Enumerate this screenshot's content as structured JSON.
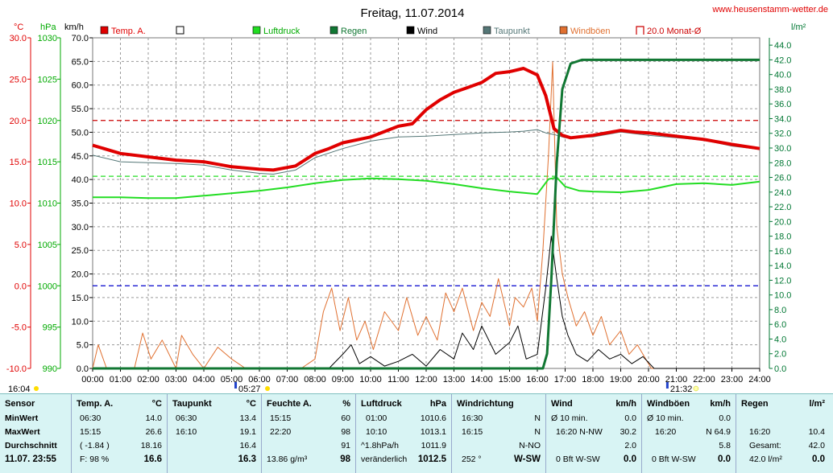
{
  "header": {
    "title": "Freitag, 11.07.2014",
    "site": "www.heusenstamm-wetter.de",
    "unit_temp": "°C",
    "unit_hpa": "hPa",
    "unit_kmh": "km/h",
    "unit_rain": "l/m²"
  },
  "legend": [
    {
      "label": "Temp. A.",
      "color": "#e00000"
    },
    {
      "label": "",
      "color": "#ffffff"
    },
    {
      "label": "Luftdruck",
      "color": "#22dd22"
    },
    {
      "label": "Regen",
      "color": "#117733"
    },
    {
      "label": "Wind",
      "color": "#000000"
    },
    {
      "label": "Taupunkt",
      "color": "#557777"
    },
    {
      "label": "Windböen",
      "color": "#e07030"
    },
    {
      "label": "20.0 Monat-Ø",
      "color": "#cc0000"
    }
  ],
  "axes": {
    "temp_ticks": [
      "30.0",
      "25.0",
      "20.0",
      "15.0",
      "10.0",
      "5.0",
      "0.0",
      "-5.0",
      "-10.0"
    ],
    "hpa_ticks": [
      "1030",
      "1025",
      "1020",
      "1015",
      "1010",
      "1005",
      "1000",
      "995",
      "990"
    ],
    "kmh_ticks": [
      "70.0",
      "65.0",
      "60.0",
      "55.0",
      "50.0",
      "45.0",
      "40.0",
      "35.0",
      "30.0",
      "25.0",
      "20.0",
      "15.0",
      "10.0",
      "5.0",
      "0.0"
    ],
    "rain_ticks": [
      "44.0",
      "42.0",
      "40.0",
      "38.0",
      "36.0",
      "34.0",
      "32.0",
      "30.0",
      "28.0",
      "26.0",
      "24.0",
      "22.0",
      "20.0",
      "18.0",
      "16.0",
      "14.0",
      "12.0",
      "10.0",
      "8.0",
      "6.0",
      "4.0",
      "2.0",
      "0.0"
    ],
    "time_ticks": [
      "00:00",
      "01:00",
      "02:00",
      "03:00",
      "04:00",
      "05:00",
      "06:00",
      "07:00",
      "08:00",
      "09:00",
      "10:00",
      "11:00",
      "12:00",
      "13:00",
      "14:00",
      "15:00",
      "16:00",
      "17:00",
      "18:00",
      "19:00",
      "20:00",
      "21:00",
      "22:00",
      "23:00",
      "24:00"
    ],
    "markers": {
      "left": "16:04",
      "sunrise": "05:27",
      "sunset": "21:32"
    }
  },
  "chart_data": {
    "type": "line",
    "title": "Freitag, 11.07.2014",
    "x_unit": "hours",
    "xlim": [
      0,
      24
    ],
    "temp_range": [
      -10,
      30
    ],
    "hpa_range": [
      990,
      1030
    ],
    "kmh_range": [
      0,
      70
    ],
    "rain_range": [
      0,
      45
    ],
    "reference_lines": [
      {
        "name": "20.0 Monat-Ø",
        "value": 20.0,
        "axis": "temp",
        "color": "#cc0000"
      },
      {
        "name": "Luftdruck ref",
        "value": 1013.25,
        "axis": "hpa",
        "color": "#22dd22"
      },
      {
        "name": "Temp ref",
        "value": 0.0,
        "axis": "temp",
        "color": "#0000cc"
      }
    ],
    "series": [
      {
        "name": "Temp. A.",
        "axis": "temp",
        "color": "#e00000",
        "width": 4,
        "x": [
          0,
          1,
          2,
          3,
          4,
          5,
          6,
          6.5,
          7.3,
          8,
          8.5,
          9,
          10,
          11,
          11.5,
          12,
          12.5,
          13,
          13.5,
          14,
          14.5,
          15,
          15.5,
          16,
          16.3,
          16.6,
          16.9,
          17.2,
          18,
          19,
          19.5,
          20,
          21,
          22,
          23,
          24
        ],
        "y": [
          17.0,
          16.0,
          15.6,
          15.2,
          15.0,
          14.4,
          14.1,
          14.0,
          14.5,
          16.0,
          16.6,
          17.3,
          18.0,
          19.3,
          19.6,
          21.3,
          22.5,
          23.4,
          24.0,
          24.6,
          25.7,
          25.9,
          26.3,
          25.5,
          23.0,
          19.0,
          18.2,
          17.9,
          18.2,
          18.8,
          18.6,
          18.5,
          18.1,
          17.7,
          17.1,
          16.6
        ]
      },
      {
        "name": "Taupunkt",
        "axis": "temp",
        "color": "#557777",
        "width": 1,
        "x": [
          0,
          1,
          2,
          3,
          4,
          5,
          6,
          6.5,
          7.3,
          8,
          9,
          10,
          11,
          12,
          13,
          14,
          15,
          15.5,
          16,
          16.3,
          16.6,
          17,
          18,
          19,
          20,
          21,
          22,
          23,
          24
        ],
        "y": [
          15.8,
          15.0,
          14.9,
          14.8,
          14.6,
          14.0,
          13.6,
          13.5,
          14.0,
          15.5,
          16.6,
          17.5,
          18.0,
          18.1,
          18.3,
          18.5,
          18.6,
          18.7,
          18.9,
          18.5,
          18.3,
          17.9,
          18.0,
          18.6,
          18.2,
          17.9,
          17.6,
          16.9,
          16.5
        ]
      },
      {
        "name": "Luftdruck",
        "axis": "hpa",
        "color": "#22dd22",
        "width": 2,
        "x": [
          0,
          1,
          2,
          3,
          4,
          5,
          6,
          7,
          8,
          9,
          10,
          11,
          12,
          13,
          14,
          15,
          16,
          16.4,
          16.7,
          17,
          17.5,
          18,
          19,
          20,
          21,
          22,
          23,
          24
        ],
        "y": [
          1010.7,
          1010.7,
          1010.6,
          1010.6,
          1010.9,
          1011.2,
          1011.5,
          1011.9,
          1012.4,
          1012.8,
          1013.0,
          1012.9,
          1012.7,
          1012.3,
          1011.8,
          1011.4,
          1011.1,
          1012.9,
          1013.1,
          1012.0,
          1011.5,
          1011.4,
          1011.3,
          1011.6,
          1012.3,
          1012.4,
          1012.2,
          1012.6
        ]
      },
      {
        "name": "Regen",
        "axis": "rain",
        "color": "#117733",
        "width": 3,
        "x": [
          0,
          16.2,
          16.35,
          16.5,
          16.7,
          16.9,
          17.2,
          17.6,
          24
        ],
        "y": [
          0.0,
          0.0,
          2.0,
          12.0,
          28.0,
          38.0,
          41.5,
          42.0,
          42.0
        ]
      },
      {
        "name": "Wind",
        "axis": "kmh",
        "color": "#000000",
        "width": 1,
        "x": [
          0,
          8.5,
          9,
          9.3,
          9.6,
          10,
          10.5,
          11,
          11.5,
          12,
          12.5,
          13,
          13.3,
          13.7,
          14,
          14.5,
          15,
          15.3,
          15.6,
          16,
          16.3,
          16.5,
          16.7,
          16.9,
          17.1,
          17.4,
          17.8,
          18.2,
          18.6,
          19,
          19.4,
          19.8,
          20.2,
          24
        ],
        "y": [
          0,
          0,
          3.0,
          5.0,
          1.0,
          2.5,
          0.5,
          1.5,
          3.0,
          0.5,
          4.0,
          2.0,
          7.5,
          4.0,
          9.0,
          3.0,
          5.5,
          9.0,
          2.0,
          3.0,
          17.0,
          28.0,
          19.0,
          11.0,
          7.0,
          3.0,
          1.5,
          4.0,
          2.0,
          3.0,
          1.0,
          2.5,
          0.0,
          0.0
        ]
      },
      {
        "name": "Windböen",
        "axis": "kmh",
        "color": "#e07030",
        "width": 1,
        "x": [
          0,
          0.2,
          0.5,
          1,
          1.5,
          1.8,
          2.1,
          2.5,
          3,
          3.2,
          3.6,
          4,
          4.5,
          5,
          5.5,
          6,
          7,
          7.5,
          8,
          8.3,
          8.6,
          8.9,
          9.2,
          9.5,
          9.8,
          10.1,
          10.5,
          11,
          11.3,
          11.7,
          12,
          12.4,
          12.7,
          13,
          13.3,
          13.7,
          14,
          14.3,
          14.6,
          15,
          15.2,
          15.5,
          15.8,
          16,
          16.2,
          16.4,
          16.55,
          16.7,
          16.9,
          17.1,
          17.4,
          17.7,
          18,
          18.3,
          18.6,
          19,
          19.3,
          19.6,
          19.9,
          20.1,
          24
        ],
        "y": [
          0,
          5.0,
          0,
          0,
          0,
          7.5,
          2.0,
          6.0,
          0,
          7.0,
          3.0,
          0,
          4.5,
          2.0,
          0,
          0,
          0,
          0,
          2.0,
          12.0,
          17.0,
          8.0,
          15.0,
          6.0,
          10.0,
          4.0,
          12.0,
          8.0,
          15.0,
          7.0,
          11.0,
          6.0,
          16.0,
          12.0,
          17.0,
          8.0,
          14.0,
          11.0,
          19.0,
          9.0,
          15.0,
          13.0,
          17.0,
          10.0,
          25.0,
          45.0,
          64.9,
          30.0,
          20.0,
          15.0,
          9.0,
          12.0,
          7.0,
          11.0,
          5.0,
          8.0,
          3.0,
          5.0,
          2.0,
          0,
          0
        ]
      }
    ]
  },
  "stats": {
    "sensor": {
      "header": "Sensor",
      "rows": [
        "MinWert",
        "MaxWert",
        "Durchschnitt"
      ],
      "datetime": "11.07. 23:55"
    },
    "temp": {
      "header": "Temp. A.",
      "unit": "°C",
      "rows": [
        [
          "06:30",
          "14.0"
        ],
        [
          "15:15",
          "26.6"
        ],
        [
          "( -1.84 )",
          "18.16"
        ]
      ],
      "last_left": "F: 98 %",
      "current": "16.6"
    },
    "taupunkt": {
      "header": "Taupunkt",
      "unit": "°C",
      "rows": [
        [
          "06:30",
          "13.4"
        ],
        [
          "16:10",
          "19.1"
        ],
        [
          "",
          "16.4"
        ]
      ],
      "current": "16.3"
    },
    "feuchte": {
      "header": "Feuchte A.",
      "unit": "%",
      "rows": [
        [
          "15:15",
          "60"
        ],
        [
          "22:20",
          "98"
        ],
        [
          "",
          "91"
        ]
      ],
      "last_left": "13.86 g/m³",
      "current": "98"
    },
    "luftdruck": {
      "header": "Luftdruck",
      "unit": "hPa",
      "rows": [
        [
          "01:00",
          "1010.6"
        ],
        [
          "10:10",
          "1013.1"
        ],
        [
          "^1.8hPa/h",
          "1011.9"
        ]
      ],
      "last_left": "veränderlich",
      "current": "1012.5"
    },
    "windrichtung": {
      "header": "Windrichtung",
      "unit": "",
      "rows": [
        [
          "16:30",
          "N"
        ],
        [
          "16:15",
          "N"
        ],
        [
          "",
          "N-NO"
        ]
      ],
      "last_left": "252 °",
      "current": "W-SW"
    },
    "wind": {
      "header": "Wind",
      "unit": "km/h",
      "rows": [
        [
          "Ø 10 min.",
          "0.0"
        ],
        [
          "16:20  N-NW",
          "30.2"
        ],
        [
          "",
          "2.0"
        ]
      ],
      "last_left": "0 Bft W-SW",
      "current": "0.0"
    },
    "windboeen": {
      "header": "Windböen",
      "unit": "km/h",
      "rows": [
        [
          "Ø 10 min.",
          "0.0"
        ],
        [
          "16:20",
          "N 64.9"
        ],
        [
          "",
          "5.8"
        ]
      ],
      "last_left": "0 Bft W-SW",
      "current": "0.0"
    },
    "regen": {
      "header": "Regen",
      "unit": "l/m²",
      "rows": [
        [
          "",
          ""
        ],
        [
          "16:20",
          "10.4"
        ],
        [
          "Gesamt:",
          "42.0"
        ]
      ],
      "last_left": "42.0 l/m²",
      "current": "0.0"
    }
  }
}
